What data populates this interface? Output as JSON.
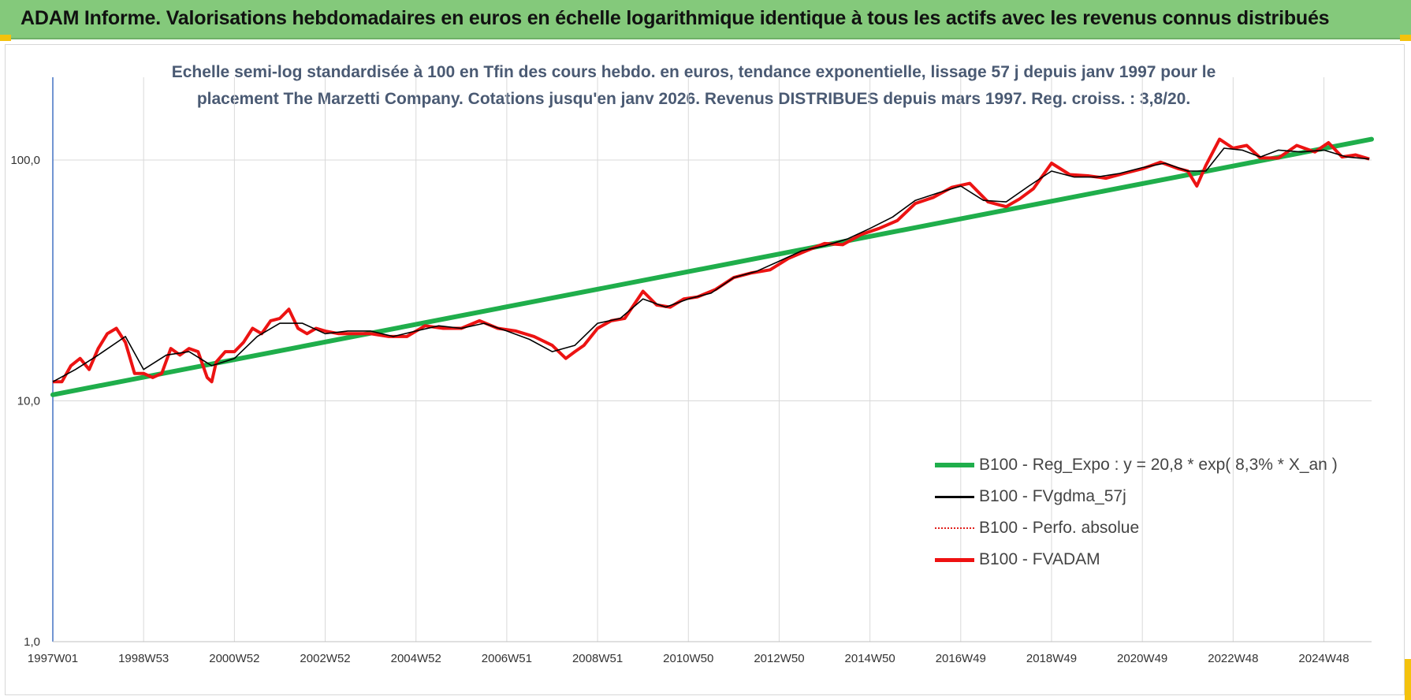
{
  "banner": {
    "title": "ADAM Informe. Valorisations hebdomadaires en euros en échelle logarithmique identique à tous les actifs avec les revenus connus distribués"
  },
  "colors": {
    "banner_bg": "#84c97b",
    "corner_marker": "#f4c20d",
    "regression": "#1fae4b",
    "fvgdma": "#000000",
    "perfo": "#e0201c",
    "fvadam": "#ee1111",
    "grid": "#d9d9d9",
    "axis": "#4472c4"
  },
  "chart_data": {
    "type": "line",
    "title_lines": [
      "Echelle semi-log standardisée à 100 en Tfin des cours hebdo. en euros, tendance exponentielle, lissage 57 j depuis janv 1997 pour le",
      "placement The Marzetti Company. Cotations jusqu'en janv 2026. Revenus DISTRIBUES depuis mars 1997. Reg. croiss. : 3,8/20."
    ],
    "y_scale": "log",
    "ylim": [
      1,
      200
    ],
    "y_ticks": [
      {
        "value": 100,
        "label": "100,0"
      },
      {
        "value": 10,
        "label": "10,0"
      },
      {
        "value": 1,
        "label": "1,0"
      }
    ],
    "x_range": [
      1997.0,
      2026.05
    ],
    "x_ticks": [
      {
        "t": 1997.0,
        "label": "1997W01"
      },
      {
        "t": 1999.0,
        "label": "1998W53"
      },
      {
        "t": 2001.0,
        "label": "2000W52"
      },
      {
        "t": 2003.0,
        "label": "2002W52"
      },
      {
        "t": 2005.0,
        "label": "2004W52"
      },
      {
        "t": 2007.0,
        "label": "2006W51"
      },
      {
        "t": 2009.0,
        "label": "2008W51"
      },
      {
        "t": 2011.0,
        "label": "2010W50"
      },
      {
        "t": 2013.0,
        "label": "2012W50"
      },
      {
        "t": 2015.0,
        "label": "2014W50"
      },
      {
        "t": 2017.0,
        "label": "2016W49"
      },
      {
        "t": 2019.0,
        "label": "2018W49"
      },
      {
        "t": 2021.0,
        "label": "2020W49"
      },
      {
        "t": 2023.0,
        "label": "2022W48"
      },
      {
        "t": 2025.0,
        "label": "2024W48"
      }
    ],
    "legend_placement": "lower-right",
    "series": [
      {
        "name": "B100 - Reg_Expo : y = 20,8 * exp( 8,3% *  X_an )",
        "style": "thick",
        "x": [
          1997.0,
          2026.05
        ],
        "values": [
          10.6,
          122.0
        ]
      },
      {
        "name": "B100 - FVgdma_57j",
        "style": "thin",
        "x": [
          1997.0,
          1997.5,
          1998.0,
          1998.6,
          1999.0,
          1999.5,
          2000.0,
          2000.5,
          2001.0,
          2001.5,
          2002.0,
          2002.5,
          2003.0,
          2003.5,
          2004.0,
          2004.5,
          2005.0,
          2005.5,
          2006.0,
          2006.5,
          2007.0,
          2007.5,
          2008.0,
          2008.5,
          2009.0,
          2009.5,
          2010.0,
          2010.5,
          2011.0,
          2011.5,
          2012.0,
          2012.5,
          2013.0,
          2013.5,
          2014.0,
          2014.5,
          2015.0,
          2015.5,
          2016.0,
          2016.5,
          2017.0,
          2017.5,
          2018.0,
          2018.5,
          2019.0,
          2019.5,
          2020.0,
          2020.5,
          2021.0,
          2021.5,
          2022.0,
          2022.4,
          2022.8,
          2023.2,
          2023.6,
          2024.0,
          2024.5,
          2025.0,
          2025.5,
          2026.0
        ],
        "values": [
          12.0,
          13.5,
          15.5,
          18.5,
          13.5,
          15.5,
          16.0,
          14.0,
          15.0,
          18.5,
          21.0,
          21.0,
          19.0,
          19.5,
          19.5,
          18.5,
          19.5,
          20.5,
          20.0,
          21.0,
          19.5,
          18.0,
          16.0,
          17.0,
          21.0,
          22.0,
          26.5,
          24.5,
          26.5,
          28.0,
          32.5,
          34.5,
          38.0,
          42.0,
          44.0,
          47.0,
          52.0,
          58.0,
          68.0,
          73.0,
          78.0,
          68.0,
          67.0,
          78.0,
          90.0,
          85.0,
          85.0,
          88.0,
          93.0,
          97.0,
          90.0,
          90.0,
          112.0,
          110.0,
          103.0,
          110.0,
          108.0,
          110.0,
          103.0,
          101.0
        ]
      },
      {
        "name": "B100 - Perfo. absolue",
        "style": "dotted"
      },
      {
        "name": "B100 - FVADAM",
        "style": "thick",
        "x": [
          1997.0,
          1997.2,
          1997.4,
          1997.6,
          1997.8,
          1998.0,
          1998.2,
          1998.4,
          1998.6,
          1998.8,
          1999.0,
          1999.2,
          1999.4,
          1999.6,
          1999.8,
          2000.0,
          2000.2,
          2000.4,
          2000.5,
          2000.6,
          2000.8,
          2001.0,
          2001.2,
          2001.4,
          2001.6,
          2001.8,
          2002.0,
          2002.2,
          2002.4,
          2002.6,
          2002.8,
          2003.0,
          2003.3,
          2003.6,
          2004.0,
          2004.4,
          2004.8,
          2005.2,
          2005.6,
          2006.0,
          2006.4,
          2006.8,
          2007.2,
          2007.6,
          2008.0,
          2008.3,
          2008.5,
          2008.7,
          2009.0,
          2009.3,
          2009.6,
          2010.0,
          2010.3,
          2010.6,
          2010.9,
          2011.2,
          2011.6,
          2012.0,
          2012.4,
          2012.8,
          2013.2,
          2013.6,
          2014.0,
          2014.4,
          2014.8,
          2015.2,
          2015.6,
          2016.0,
          2016.4,
          2016.8,
          2017.2,
          2017.6,
          2018.0,
          2018.3,
          2018.6,
          2019.0,
          2019.4,
          2019.8,
          2020.2,
          2020.6,
          2021.0,
          2021.4,
          2021.8,
          2022.0,
          2022.2,
          2022.4,
          2022.7,
          2023.0,
          2023.3,
          2023.6,
          2024.0,
          2024.4,
          2024.8,
          2025.1,
          2025.4,
          2025.7,
          2026.0
        ],
        "values": [
          12.0,
          12.0,
          14.0,
          15.0,
          13.5,
          16.5,
          19.0,
          20.0,
          17.5,
          13.0,
          13.0,
          12.5,
          13.0,
          16.5,
          15.5,
          16.5,
          16.0,
          12.5,
          12.0,
          14.5,
          16.0,
          16.0,
          17.5,
          20.0,
          19.0,
          21.5,
          22.0,
          24.0,
          20.0,
          19.0,
          20.0,
          19.5,
          19.0,
          19.0,
          19.0,
          18.5,
          18.5,
          20.5,
          20.0,
          20.0,
          21.5,
          20.0,
          19.5,
          18.5,
          17.0,
          15.0,
          16.0,
          17.0,
          20.0,
          21.5,
          22.0,
          28.5,
          25.0,
          24.5,
          26.5,
          27.0,
          29.0,
          32.5,
          34.0,
          35.0,
          39.0,
          42.0,
          45.0,
          44.5,
          49.0,
          52.0,
          56.0,
          66.0,
          70.0,
          77.0,
          80.0,
          67.0,
          64.0,
          69.0,
          76.0,
          97.0,
          87.0,
          86.0,
          84.0,
          88.0,
          92.0,
          98.0,
          92.0,
          90.0,
          78.0,
          95.0,
          122.0,
          112.0,
          115.0,
          102.0,
          102.0,
          115.0,
          108.0,
          118.0,
          103.0,
          105.0,
          101.0
        ]
      }
    ]
  }
}
